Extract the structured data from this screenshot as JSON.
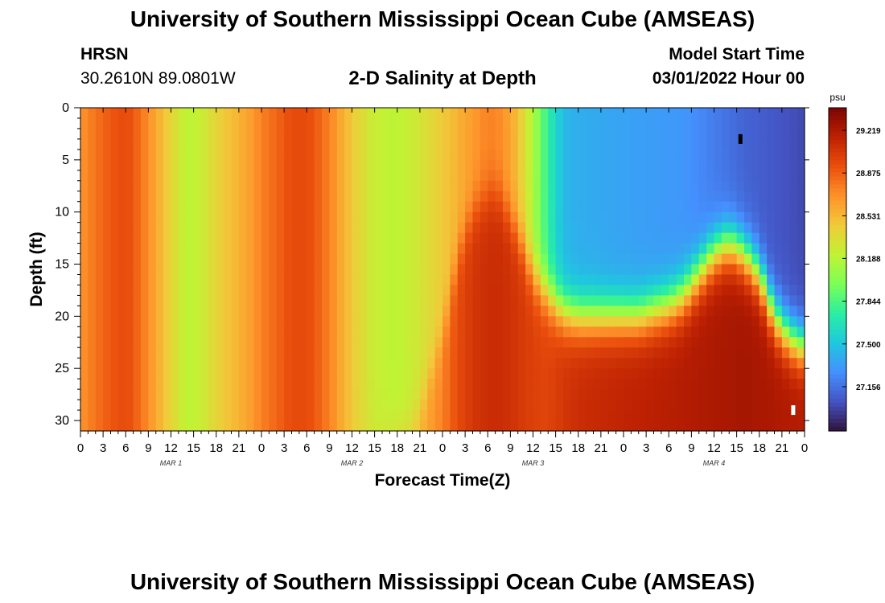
{
  "titles": {
    "main": "University of Southern Mississippi Ocean Cube (AMSEAS)",
    "repeat": "University of Southern Mississippi Ocean Cube (AMSEAS)"
  },
  "station": {
    "name": "HRSN",
    "coords": "30.2610N  89.0801W"
  },
  "model_start": {
    "label": "Model Start Time",
    "value": "03/01/2022 Hour 00"
  },
  "chart_data": {
    "type": "heatmap",
    "title": "2-D Salinity at Depth",
    "xlabel": "Forecast Time(Z)",
    "ylabel": "Depth (ft)",
    "x_range_hours": [
      0,
      96
    ],
    "y_range_ft": [
      0,
      31
    ],
    "x_tick_labels": [
      "0",
      "3",
      "6",
      "9",
      "12",
      "15",
      "18",
      "21",
      "0",
      "3",
      "6",
      "9",
      "12",
      "15",
      "18",
      "21",
      "0",
      "3",
      "6",
      "9",
      "12",
      "15",
      "18",
      "21",
      "0",
      "3",
      "6",
      "9",
      "12",
      "15",
      "18",
      "21",
      "0"
    ],
    "day_labels": [
      {
        "hour": 12,
        "label": "MAR 1"
      },
      {
        "hour": 36,
        "label": "MAR 2"
      },
      {
        "hour": 60,
        "label": "MAR 3"
      },
      {
        "hour": 84,
        "label": "MAR 4"
      }
    ],
    "y_ticks": [
      0,
      5,
      10,
      15,
      20,
      25,
      30
    ],
    "colorbar": {
      "unit": "psu",
      "range": [
        26.8,
        29.4
      ],
      "tick_values": [
        29.219,
        28.875,
        28.531,
        28.188,
        27.844,
        27.5,
        27.156
      ],
      "tick_labels": [
        "29.219",
        "28.875",
        "28.531",
        "28.188",
        "27.844",
        "27.500",
        "27.156"
      ],
      "colors": [
        "#30123b",
        "#4454c4",
        "#4490fe",
        "#1fc8de",
        "#29efa2",
        "#7dff56",
        "#c1f334",
        "#f1ca3a",
        "#fe922a",
        "#ea4f0d",
        "#be2102",
        "#7a0403"
      ]
    },
    "surface_profile": {
      "hours": [
        0,
        2,
        4,
        6,
        7,
        9,
        12,
        14,
        16,
        18,
        20,
        22,
        24,
        26,
        28,
        30,
        31,
        33,
        36,
        39,
        42,
        45,
        48,
        50,
        52,
        54,
        56,
        58,
        60,
        62,
        64,
        66,
        72,
        80,
        88,
        96
      ],
      "psu": [
        28.68,
        28.8,
        28.9,
        28.95,
        28.9,
        28.7,
        28.4,
        28.2,
        28.25,
        28.4,
        28.5,
        28.6,
        28.75,
        28.85,
        28.95,
        28.95,
        28.9,
        28.75,
        28.45,
        28.25,
        28.2,
        28.3,
        28.45,
        28.55,
        28.65,
        28.75,
        28.7,
        28.5,
        28.15,
        27.75,
        27.45,
        27.4,
        27.35,
        27.3,
        27.1,
        27.0
      ]
    },
    "deep_profile": {
      "hours": [
        0,
        2,
        4,
        6,
        7,
        9,
        12,
        14,
        16,
        18,
        20,
        22,
        24,
        26,
        28,
        30,
        31,
        33,
        36,
        39,
        42,
        45,
        48,
        50,
        52,
        54,
        56,
        58,
        60,
        62,
        64,
        66,
        72,
        80,
        88,
        96
      ],
      "psu": [
        28.68,
        28.8,
        28.9,
        28.95,
        28.9,
        28.7,
        28.4,
        28.2,
        28.25,
        28.4,
        28.5,
        28.6,
        28.75,
        28.85,
        28.95,
        28.95,
        28.9,
        28.75,
        28.45,
        28.3,
        28.4,
        28.55,
        28.75,
        28.95,
        29.05,
        29.1,
        29.1,
        29.05,
        29.0,
        28.98,
        29.05,
        29.1,
        29.15,
        29.2,
        29.25,
        29.2
      ]
    },
    "halocline": {
      "hours": [
        0,
        44,
        48,
        50,
        52,
        55,
        58,
        60,
        62,
        64,
        66,
        70,
        74,
        78,
        80,
        82,
        84,
        86,
        88,
        90,
        92,
        94,
        96
      ],
      "depth_ft": [
        31,
        31,
        22,
        14,
        10,
        8,
        12,
        16,
        18,
        19.5,
        20,
        20,
        20,
        19,
        18,
        16,
        14,
        13,
        14,
        16,
        20,
        22,
        23
      ]
    },
    "markers": [
      {
        "hour": 87.5,
        "depth_ft": 3,
        "color": "#000000"
      },
      {
        "hour": 94.5,
        "depth_ft": 29,
        "color": "#ffffff"
      }
    ]
  }
}
